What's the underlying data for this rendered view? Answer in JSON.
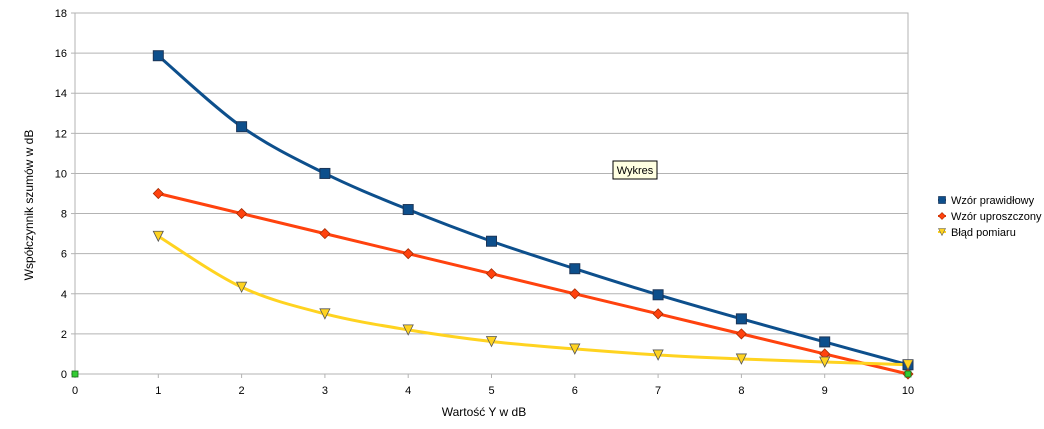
{
  "chart_data": {
    "type": "line",
    "xlabel": "Wartość Y w dB",
    "ylabel": "Współczynnik szumów w dB",
    "xlim": [
      0,
      10
    ],
    "ylim": [
      0,
      18
    ],
    "x_ticks": [
      0,
      1,
      2,
      3,
      4,
      5,
      6,
      7,
      8,
      9,
      10
    ],
    "y_ticks": [
      0,
      2,
      4,
      6,
      8,
      10,
      12,
      14,
      16,
      18
    ],
    "grid": "horizontal",
    "legend_position": "right",
    "tooltip": "Wykres",
    "series": [
      {
        "name": "Wzór prawidłowy",
        "color": "#0d4f8c",
        "marker": "square",
        "x": [
          1,
          2,
          3,
          4,
          5,
          6,
          7,
          8,
          9,
          10
        ],
        "values": [
          15.87,
          12.33,
          10.0,
          8.2,
          6.62,
          5.25,
          3.95,
          2.75,
          1.6,
          0.46
        ]
      },
      {
        "name": "Wzór uproszczony",
        "color": "#ff420e",
        "marker": "diamond",
        "x": [
          1,
          2,
          3,
          4,
          5,
          6,
          7,
          8,
          9,
          10
        ],
        "values": [
          9,
          8,
          7,
          6,
          5,
          4,
          3,
          2,
          1,
          0
        ]
      },
      {
        "name": "Błąd pomiaru",
        "color": "#ffd320",
        "marker": "triangle-down",
        "x": [
          1,
          2,
          3,
          4,
          5,
          6,
          7,
          8,
          9,
          10
        ],
        "values": [
          6.87,
          4.33,
          3.0,
          2.2,
          1.62,
          1.25,
          0.95,
          0.75,
          0.6,
          0.46
        ]
      }
    ],
    "extra_points": {
      "color": "#33cc33",
      "x": [
        0,
        10
      ],
      "values": [
        0,
        0
      ]
    }
  }
}
